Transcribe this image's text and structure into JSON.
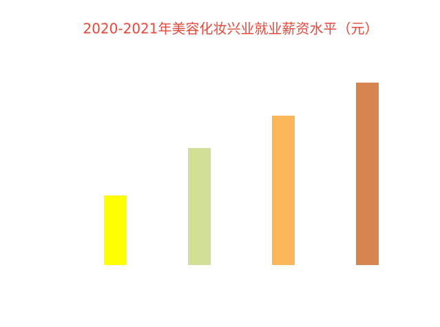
{
  "chart_data": {
    "type": "bar",
    "title": "2020-2021年美容化妆兴业就业薪资水平（元）",
    "categories": [
      null,
      null,
      null,
      null
    ],
    "values": [
      101,
      170,
      217,
      265
    ],
    "colors": [
      "#ffff00",
      "#d0e097",
      "#fab657",
      "#d68550"
    ],
    "ylim": [
      0,
      300
    ],
    "grid": false
  }
}
